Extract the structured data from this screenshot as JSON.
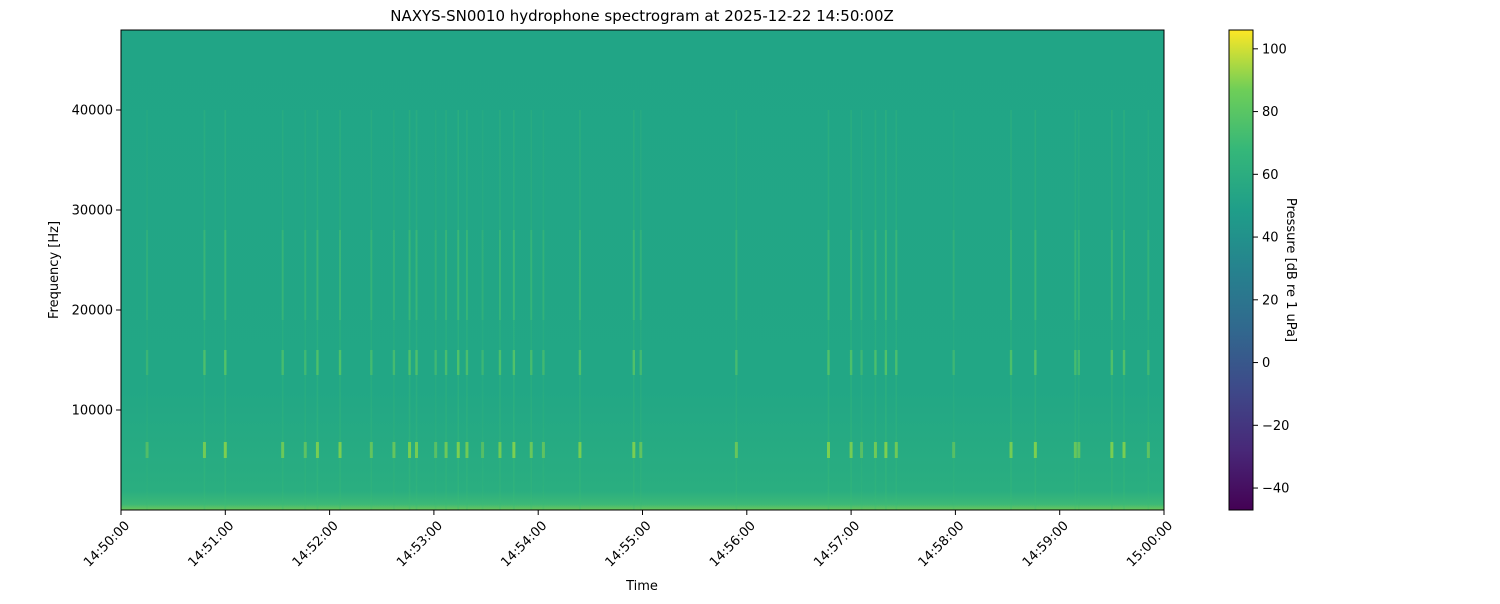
{
  "chart_data": {
    "type": "heatmap",
    "title": "NAXYS-SN0010 hydrophone spectrogram at 2025-12-22 14:50:00Z",
    "xlabel": "Time",
    "ylabel": "Frequency [Hz]",
    "colorbar_label": "Pressure [dB re 1 uPa]",
    "colormap": "viridis",
    "x_ticks": [
      "14:50:00",
      "14:51:00",
      "14:52:00",
      "14:53:00",
      "14:54:00",
      "14:55:00",
      "14:56:00",
      "14:57:00",
      "14:58:00",
      "14:59:00",
      "15:00:00"
    ],
    "x_range": [
      "14:50:00",
      "15:00:00"
    ],
    "y_ticks": [
      10000,
      20000,
      30000,
      40000
    ],
    "ylim": [
      0,
      48000
    ],
    "colorbar_ticks": [
      -40,
      -20,
      0,
      20,
      40,
      60,
      80,
      100
    ],
    "clim": [
      -47,
      106
    ],
    "background_level_db": 47,
    "low_frequency_band_db": 62,
    "tonal_bands_hz": [
      6000,
      15000
    ],
    "transient_events": [
      "14:50:15",
      "14:50:48",
      "14:51:00",
      "14:51:33",
      "14:51:46",
      "14:51:53",
      "14:52:06",
      "14:52:24",
      "14:52:37",
      "14:52:46",
      "14:52:50",
      "14:53:01",
      "14:53:07",
      "14:53:14",
      "14:53:19",
      "14:53:28",
      "14:53:38",
      "14:53:46",
      "14:53:56",
      "14:54:03",
      "14:54:24",
      "14:54:55",
      "14:54:59",
      "14:55:54",
      "14:56:47",
      "14:57:00",
      "14:57:06",
      "14:57:14",
      "14:57:20",
      "14:57:26",
      "14:57:59",
      "14:58:32",
      "14:58:46",
      "14:59:09",
      "14:59:11",
      "14:59:30",
      "14:59:37",
      "14:59:51"
    ],
    "grid": false
  }
}
